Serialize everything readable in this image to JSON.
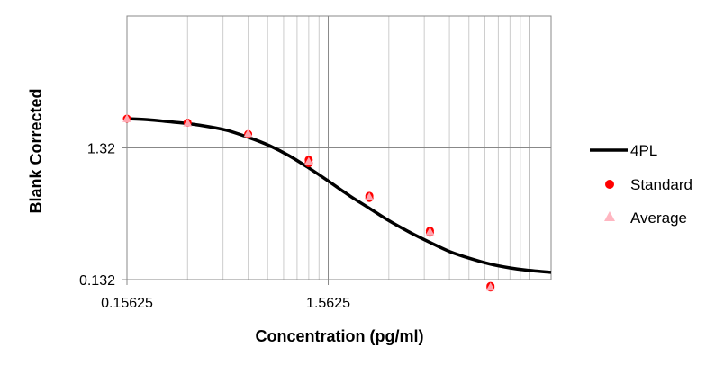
{
  "chart_data": {
    "type": "scatter",
    "xlabel": "Concentration (pg/ml)",
    "ylabel": "Blank Corrected",
    "x_scale": "log",
    "y_scale": "log",
    "xlim": [
      0.15625,
      20
    ],
    "ylim": [
      0.132,
      13.2
    ],
    "x_ticks": [
      0.15625,
      1.5625
    ],
    "x_tick_labels": [
      "0.15625",
      "1.5625"
    ],
    "y_ticks": [
      0.132,
      1.32
    ],
    "y_tick_labels": [
      "0.132",
      "1.32"
    ],
    "grid": true,
    "legend_position": "right",
    "series": [
      {
        "name": "4PL",
        "kind": "line",
        "color": "#000000",
        "x": [
          0.15625,
          0.2,
          0.25,
          0.3125,
          0.4,
          0.5,
          0.625,
          0.8,
          1.0,
          1.25,
          1.5625,
          2.0,
          2.5,
          3.125,
          4.0,
          5.0,
          6.25,
          8.0,
          10.0,
          12.5,
          15.0,
          20.0
        ],
        "y": [
          2.2,
          2.16,
          2.09,
          2.02,
          1.91,
          1.78,
          1.59,
          1.37,
          1.15,
          0.93,
          0.74,
          0.57,
          0.46,
          0.37,
          0.3,
          0.253,
          0.216,
          0.19,
          0.173,
          0.162,
          0.156,
          0.15
        ]
      },
      {
        "name": "Standard",
        "kind": "points",
        "color": "#ff0000",
        "x": [
          0.15625,
          0.3125,
          0.625,
          1.25,
          1.25,
          2.5,
          2.5,
          5.0,
          5.0,
          10.0,
          10.0
        ],
        "y": [
          2.2,
          2.05,
          1.68,
          1.07,
          1.01,
          0.57,
          0.55,
          0.31,
          0.3,
          0.118,
          0.115
        ]
      },
      {
        "name": "Average",
        "kind": "triangles",
        "color": "#ffb6c1",
        "x": [
          0.15625,
          0.3125,
          0.625,
          1.25,
          2.5,
          5.0,
          10.0
        ],
        "y": [
          2.2,
          2.04,
          1.7,
          1.04,
          0.56,
          0.305,
          0.116
        ]
      }
    ]
  }
}
